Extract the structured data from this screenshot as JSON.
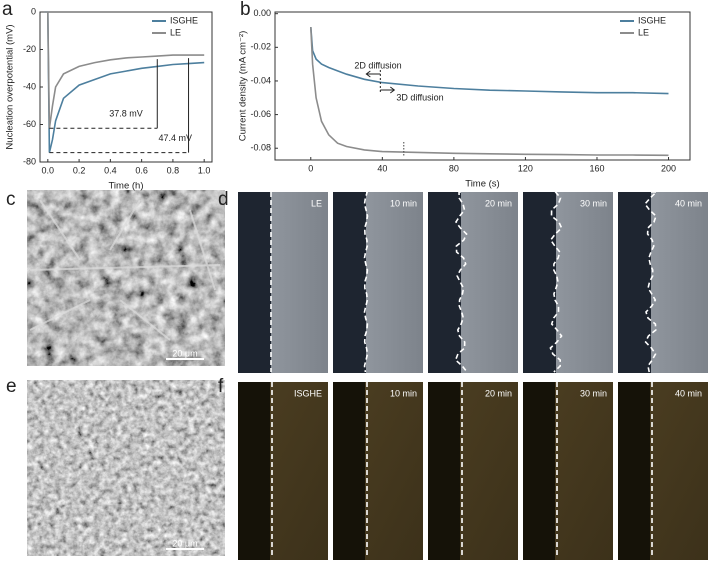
{
  "chart_data": [
    {
      "type": "line",
      "panel_label": "a",
      "xlabel": "Time (h)",
      "ylabel": "Nucleation overpotential (mV)",
      "x": [
        -0.02,
        0,
        0.01,
        0.03,
        0.05,
        0.1,
        0.2,
        0.3,
        0.4,
        0.5,
        0.6,
        0.7,
        0.8,
        0.9,
        1.0
      ],
      "series": [
        {
          "name": "ISGHE",
          "color": "#4d7f9e",
          "values": [
            0,
            0,
            -75,
            -68,
            -58,
            -46,
            -39,
            -36,
            -33,
            -31.5,
            -30,
            -29,
            -28,
            -27.5,
            -27
          ]
        },
        {
          "name": "LE",
          "color": "#8c8c8c",
          "values": [
            0,
            0,
            -62,
            -50,
            -40,
            -33,
            -29,
            -27,
            -25.5,
            -24.5,
            -24,
            -23.5,
            -23,
            -23,
            -23
          ]
        }
      ],
      "annotations": [
        "37.8 mV",
        "47.4 mV"
      ],
      "xlim": [
        -0.05,
        1.05
      ],
      "ylim": [
        -80,
        0
      ],
      "xticks": [
        {
          "value": 0,
          "label": "0.0"
        },
        0.2,
        0.4,
        0.6,
        0.8,
        {
          "value": 1,
          "label": "1.0"
        }
      ],
      "yticks": [
        -80,
        -60,
        -40,
        -20,
        0
      ],
      "legend": "upper right"
    },
    {
      "type": "line",
      "panel_label": "b",
      "xlabel": "Time (s)",
      "ylabel": "Current density (mA cm⁻²)",
      "x": [
        0,
        1,
        3,
        6,
        10,
        15,
        20,
        30,
        40,
        60,
        80,
        100,
        120,
        140,
        160,
        180,
        200
      ],
      "series": [
        {
          "name": "ISGHE",
          "color": "#4d7f9e",
          "values": [
            -0.008,
            -0.022,
            -0.027,
            -0.03,
            -0.032,
            -0.034,
            -0.036,
            -0.039,
            -0.041,
            -0.043,
            -0.0445,
            -0.0455,
            -0.046,
            -0.0465,
            -0.047,
            -0.047,
            -0.0475
          ]
        },
        {
          "name": "LE",
          "color": "#8c8c8c",
          "values": [
            -0.008,
            -0.03,
            -0.05,
            -0.064,
            -0.072,
            -0.077,
            -0.079,
            -0.081,
            -0.082,
            -0.0825,
            -0.083,
            -0.0833,
            -0.0836,
            -0.0838,
            -0.084,
            -0.084,
            -0.0842
          ]
        }
      ],
      "annotations": [
        "2D diffusion",
        "3D diffusion"
      ],
      "xlim": [
        -20,
        212
      ],
      "ylim": [
        -0.087,
        0.001
      ],
      "xticks": [
        0,
        40,
        80,
        120,
        160,
        200
      ],
      "yticks": [
        {
          "value": -0.08,
          "label": "-0.08"
        },
        {
          "value": -0.06,
          "label": "-0.06"
        },
        {
          "value": -0.04,
          "label": "-0.04"
        },
        {
          "value": -0.02,
          "label": "-0.02"
        },
        {
          "value": 0,
          "label": "0.00"
        }
      ],
      "legend": "upper right"
    }
  ],
  "panels": {
    "c": {
      "label": "c",
      "scale_bar": "20 μm"
    },
    "d": {
      "label": "d",
      "frames": [
        "LE",
        "10 min",
        "20 min",
        "30 min",
        "40 min"
      ]
    },
    "e": {
      "label": "e",
      "scale_bar": "20 μm"
    },
    "f": {
      "label": "f",
      "frames": [
        "ISGHE",
        "10 min",
        "20 min",
        "30 min",
        "40 min"
      ]
    }
  }
}
